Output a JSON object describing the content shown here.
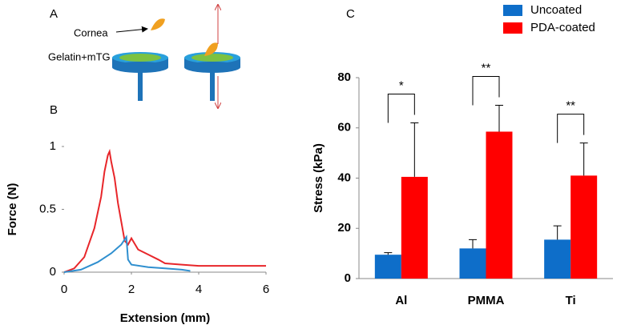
{
  "diagram": {
    "panel_label": "A",
    "cornea_label": "Cornea",
    "substrate_label": "Gelatin+mTG"
  },
  "chart_data": [
    {
      "type": "line",
      "panel_label": "B",
      "xlabel": "Extension (mm)",
      "ylabel": "Force (N)",
      "xlim": [
        0,
        6
      ],
      "xticks": [
        0,
        2,
        4,
        6
      ],
      "ylim": [
        0,
        1
      ],
      "yticks": [
        0,
        0.5,
        1
      ],
      "series": [
        {
          "color": "#e8262a",
          "x": [
            0,
            0.3,
            0.6,
            0.9,
            1.1,
            1.2,
            1.3,
            1.35,
            1.4,
            1.5,
            1.6,
            1.7,
            1.8,
            1.9,
            2.0,
            2.2,
            2.5,
            2.8,
            3.0,
            3.5,
            4.0,
            5.0,
            6.0
          ],
          "values": [
            0,
            0.03,
            0.12,
            0.35,
            0.6,
            0.8,
            0.93,
            0.96,
            0.88,
            0.75,
            0.55,
            0.4,
            0.25,
            0.22,
            0.27,
            0.18,
            0.14,
            0.1,
            0.07,
            0.06,
            0.05,
            0.05,
            0.05
          ]
        },
        {
          "color": "#2f8fcf",
          "x": [
            0,
            0.5,
            1.0,
            1.4,
            1.7,
            1.85,
            1.9,
            2.0,
            2.5,
            3.0,
            3.5,
            3.75
          ],
          "values": [
            0,
            0.02,
            0.08,
            0.15,
            0.22,
            0.28,
            0.1,
            0.06,
            0.04,
            0.03,
            0.02,
            0.01
          ]
        }
      ]
    },
    {
      "type": "bar",
      "panel_label": "C",
      "ylabel": "Stress (kPa)",
      "categories": [
        "Al",
        "PMMA",
        "Ti"
      ],
      "ylim": [
        0,
        80
      ],
      "yticks": [
        0,
        20,
        40,
        60,
        80
      ],
      "series": [
        {
          "name": "Uncoated",
          "color": "#0e6ec9",
          "values": [
            9.5,
            12,
            15.5
          ],
          "errors": [
            0.8,
            3.5,
            5.5
          ]
        },
        {
          "name": "PDA-coated",
          "color": "#ff0000",
          "values": [
            40.5,
            58.5,
            41
          ],
          "errors": [
            21.5,
            10.5,
            13
          ]
        }
      ],
      "annotations": [
        "*",
        "**",
        "**"
      ]
    }
  ]
}
